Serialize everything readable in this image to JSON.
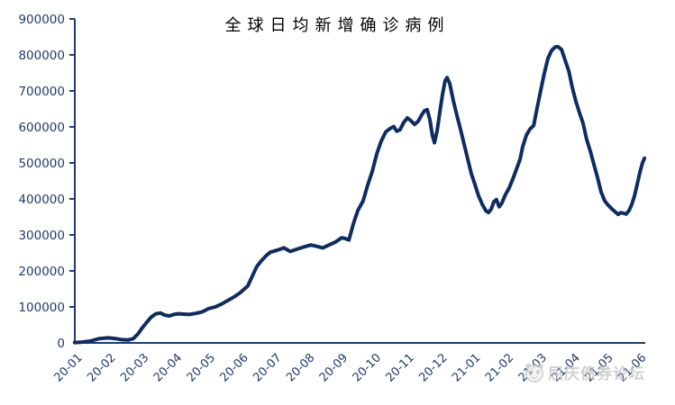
{
  "watermark": {
    "text": "屈庆债券论坛",
    "logo": "panda-face-logo",
    "color": "#bfbfbf"
  },
  "chart_data": {
    "type": "line",
    "title": "全球日均新增确诊病例",
    "xlabel": "",
    "ylabel": "",
    "ylim": [
      0,
      900000
    ],
    "grid": false,
    "legend": "none",
    "line_color": "#0f2c62",
    "axis_color": "#1e3a6e",
    "x_tick_labels": [
      "20-01",
      "20-02",
      "20-03",
      "20-04",
      "20-05",
      "20-06",
      "20-07",
      "20-08",
      "20-09",
      "20-10",
      "20-11",
      "20-12",
      "21-01",
      "21-02",
      "21-03",
      "21-04",
      "21-05",
      "21-06"
    ],
    "y_tick_labels": [
      "0",
      "100000",
      "200000",
      "300000",
      "400000",
      "500000",
      "600000",
      "700000",
      "800000",
      "900000"
    ],
    "y_ticks": [
      0,
      100000,
      200000,
      300000,
      400000,
      500000,
      600000,
      700000,
      800000,
      900000
    ],
    "points_note": "x = months since 20-01 tick, y = daily average new confirmed cases",
    "points": [
      [
        -0.14,
        1000
      ],
      [
        0.05,
        2000
      ],
      [
        0.33,
        5000
      ],
      [
        0.6,
        12000
      ],
      [
        0.87,
        14000
      ],
      [
        1.09,
        12000
      ],
      [
        1.28,
        9000
      ],
      [
        1.47,
        8000
      ],
      [
        1.63,
        12000
      ],
      [
        1.77,
        25000
      ],
      [
        1.9,
        42000
      ],
      [
        2.04,
        58000
      ],
      [
        2.17,
        72000
      ],
      [
        2.31,
        81000
      ],
      [
        2.45,
        83000
      ],
      [
        2.58,
        77000
      ],
      [
        2.72,
        75000
      ],
      [
        2.85,
        79000
      ],
      [
        2.99,
        81000
      ],
      [
        3.13,
        80000
      ],
      [
        3.32,
        79000
      ],
      [
        3.51,
        82000
      ],
      [
        3.7,
        86000
      ],
      [
        3.89,
        95000
      ],
      [
        4.1,
        100000
      ],
      [
        4.29,
        108000
      ],
      [
        4.48,
        118000
      ],
      [
        4.67,
        128000
      ],
      [
        4.86,
        140000
      ],
      [
        5.08,
        158000
      ],
      [
        5.35,
        212000
      ],
      [
        5.49,
        228000
      ],
      [
        5.63,
        242000
      ],
      [
        5.76,
        252000
      ],
      [
        5.98,
        258000
      ],
      [
        6.17,
        264000
      ],
      [
        6.36,
        254000
      ],
      [
        6.58,
        261000
      ],
      [
        6.79,
        267000
      ],
      [
        6.98,
        272000
      ],
      [
        7.17,
        268000
      ],
      [
        7.34,
        264000
      ],
      [
        7.53,
        272000
      ],
      [
        7.72,
        280000
      ],
      [
        7.91,
        292000
      ],
      [
        8.02,
        290000
      ],
      [
        8.13,
        286000
      ],
      [
        8.26,
        330000
      ],
      [
        8.4,
        368000
      ],
      [
        8.56,
        395000
      ],
      [
        8.7,
        440000
      ],
      [
        8.83,
        475000
      ],
      [
        8.97,
        525000
      ],
      [
        9.1,
        560000
      ],
      [
        9.24,
        586000
      ],
      [
        9.38,
        596000
      ],
      [
        9.48,
        601000
      ],
      [
        9.57,
        588000
      ],
      [
        9.67,
        592000
      ],
      [
        9.78,
        612000
      ],
      [
        9.89,
        625000
      ],
      [
        10.0,
        617000
      ],
      [
        10.11,
        607000
      ],
      [
        10.22,
        616000
      ],
      [
        10.33,
        634000
      ],
      [
        10.41,
        645000
      ],
      [
        10.49,
        648000
      ],
      [
        10.57,
        620000
      ],
      [
        10.65,
        575000
      ],
      [
        10.71,
        556000
      ],
      [
        10.79,
        590000
      ],
      [
        10.87,
        640000
      ],
      [
        10.95,
        690000
      ],
      [
        11.03,
        728000
      ],
      [
        11.09,
        737000
      ],
      [
        11.17,
        720000
      ],
      [
        11.28,
        672000
      ],
      [
        11.39,
        630000
      ],
      [
        11.49,
        595000
      ],
      [
        11.6,
        553000
      ],
      [
        11.71,
        512000
      ],
      [
        11.82,
        470000
      ],
      [
        11.93,
        440000
      ],
      [
        12.04,
        408000
      ],
      [
        12.15,
        385000
      ],
      [
        12.26,
        367000
      ],
      [
        12.34,
        362000
      ],
      [
        12.42,
        372000
      ],
      [
        12.5,
        392000
      ],
      [
        12.58,
        398000
      ],
      [
        12.66,
        378000
      ],
      [
        12.74,
        388000
      ],
      [
        12.85,
        412000
      ],
      [
        12.96,
        430000
      ],
      [
        13.07,
        455000
      ],
      [
        13.18,
        482000
      ],
      [
        13.29,
        510000
      ],
      [
        13.37,
        545000
      ],
      [
        13.48,
        577000
      ],
      [
        13.59,
        594000
      ],
      [
        13.7,
        604000
      ],
      [
        13.8,
        650000
      ],
      [
        13.91,
        700000
      ],
      [
        14.02,
        748000
      ],
      [
        14.13,
        790000
      ],
      [
        14.24,
        812000
      ],
      [
        14.35,
        822000
      ],
      [
        14.43,
        823000
      ],
      [
        14.54,
        815000
      ],
      [
        14.65,
        785000
      ],
      [
        14.76,
        755000
      ],
      [
        14.86,
        712000
      ],
      [
        14.97,
        672000
      ],
      [
        15.08,
        640000
      ],
      [
        15.19,
        610000
      ],
      [
        15.3,
        565000
      ],
      [
        15.41,
        532000
      ],
      [
        15.52,
        495000
      ],
      [
        15.63,
        458000
      ],
      [
        15.73,
        420000
      ],
      [
        15.84,
        395000
      ],
      [
        15.95,
        382000
      ],
      [
        16.06,
        372000
      ],
      [
        16.17,
        363000
      ],
      [
        16.25,
        357000
      ],
      [
        16.33,
        362000
      ],
      [
        16.41,
        360000
      ],
      [
        16.49,
        358000
      ],
      [
        16.58,
        368000
      ],
      [
        16.66,
        385000
      ],
      [
        16.74,
        408000
      ],
      [
        16.82,
        440000
      ],
      [
        16.9,
        472000
      ],
      [
        16.98,
        500000
      ],
      [
        17.04,
        513000
      ]
    ]
  }
}
